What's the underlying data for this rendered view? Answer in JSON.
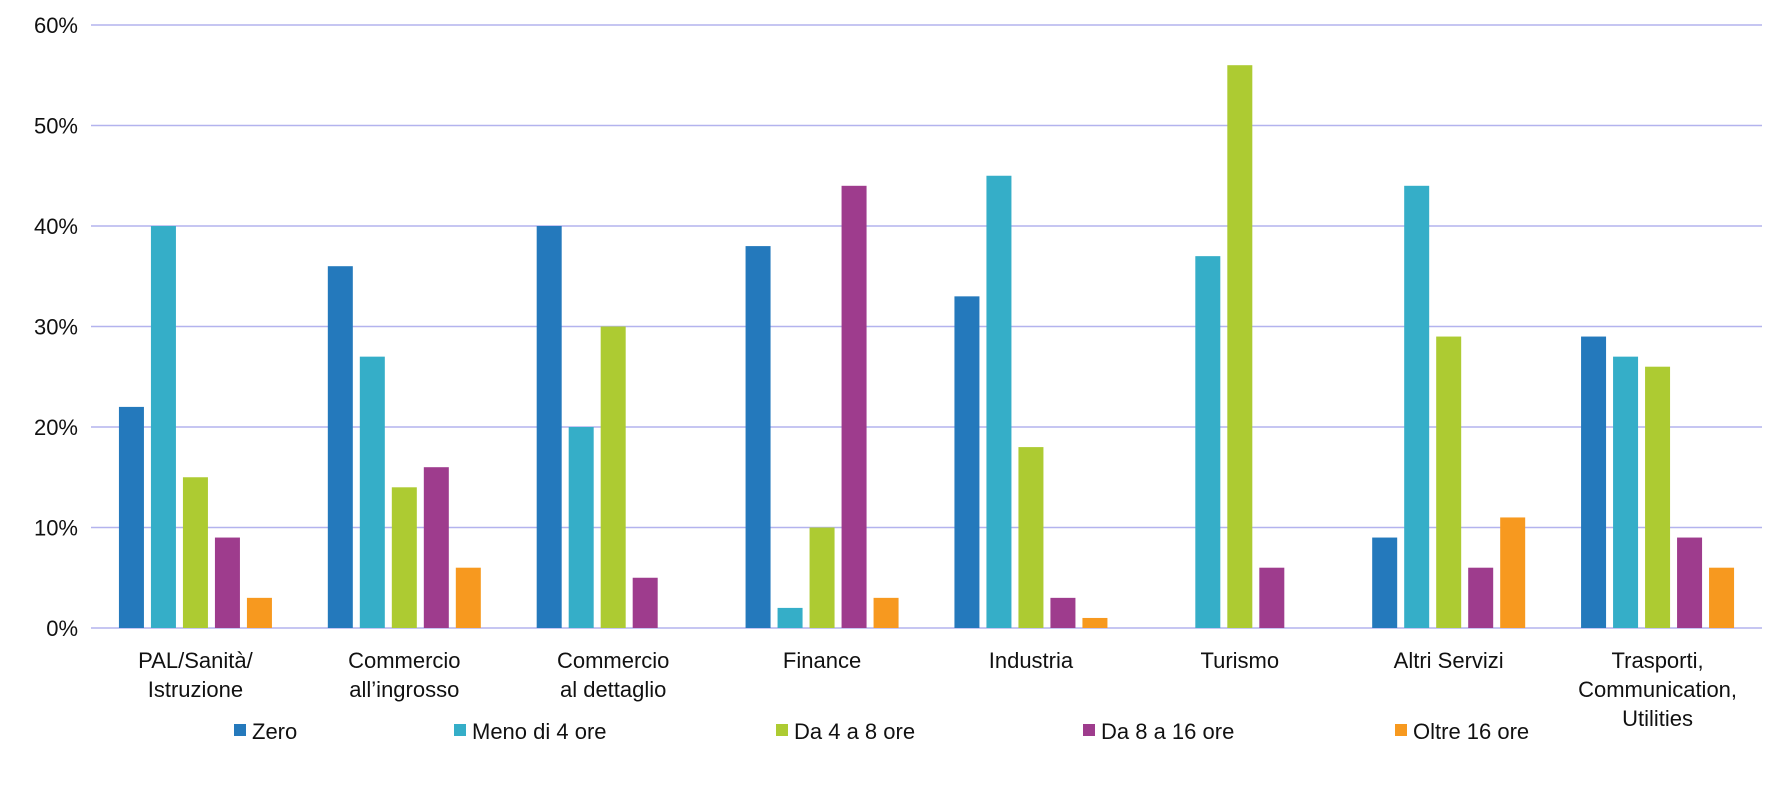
{
  "chart_data": {
    "type": "bar",
    "title": "",
    "xlabel": "",
    "ylabel": "",
    "ylim": [
      0,
      60
    ],
    "yticks": [
      "0%",
      "10%",
      "20%",
      "30%",
      "40%",
      "50%",
      "60%"
    ],
    "grid": true,
    "legend_position": "bottom",
    "categories": [
      [
        "PAL/Sanità/",
        "Istruzione"
      ],
      [
        "Commercio",
        "all’ingrosso"
      ],
      [
        "Commercio",
        "al dettaglio"
      ],
      [
        "Finance"
      ],
      [
        "Industria"
      ],
      [
        "Turismo"
      ],
      [
        "Altri Servizi"
      ],
      [
        "Trasporti,",
        "Communication,",
        "Utilities"
      ]
    ],
    "series": [
      {
        "name": "Zero",
        "color": "#2479BC",
        "values": [
          22,
          36,
          40,
          38,
          33,
          0,
          9,
          29
        ]
      },
      {
        "name": "Meno di 4 ore",
        "color": "#35AEC8",
        "values": [
          40,
          27,
          20,
          2,
          45,
          37,
          44,
          27
        ]
      },
      {
        "name": "Da 4 a 8 ore",
        "color": "#ADCB32",
        "values": [
          15,
          14,
          30,
          10,
          18,
          56,
          29,
          26
        ]
      },
      {
        "name": "Da 8 a 16 ore",
        "color": "#9E3C8D",
        "values": [
          9,
          16,
          5,
          44,
          3,
          6,
          6,
          9
        ]
      },
      {
        "name": "Oltre 16 ore",
        "color": "#F7991F",
        "values": [
          3,
          6,
          0,
          3,
          1,
          0,
          11,
          6
        ]
      }
    ],
    "gridline_color": "#B3B3EE"
  }
}
